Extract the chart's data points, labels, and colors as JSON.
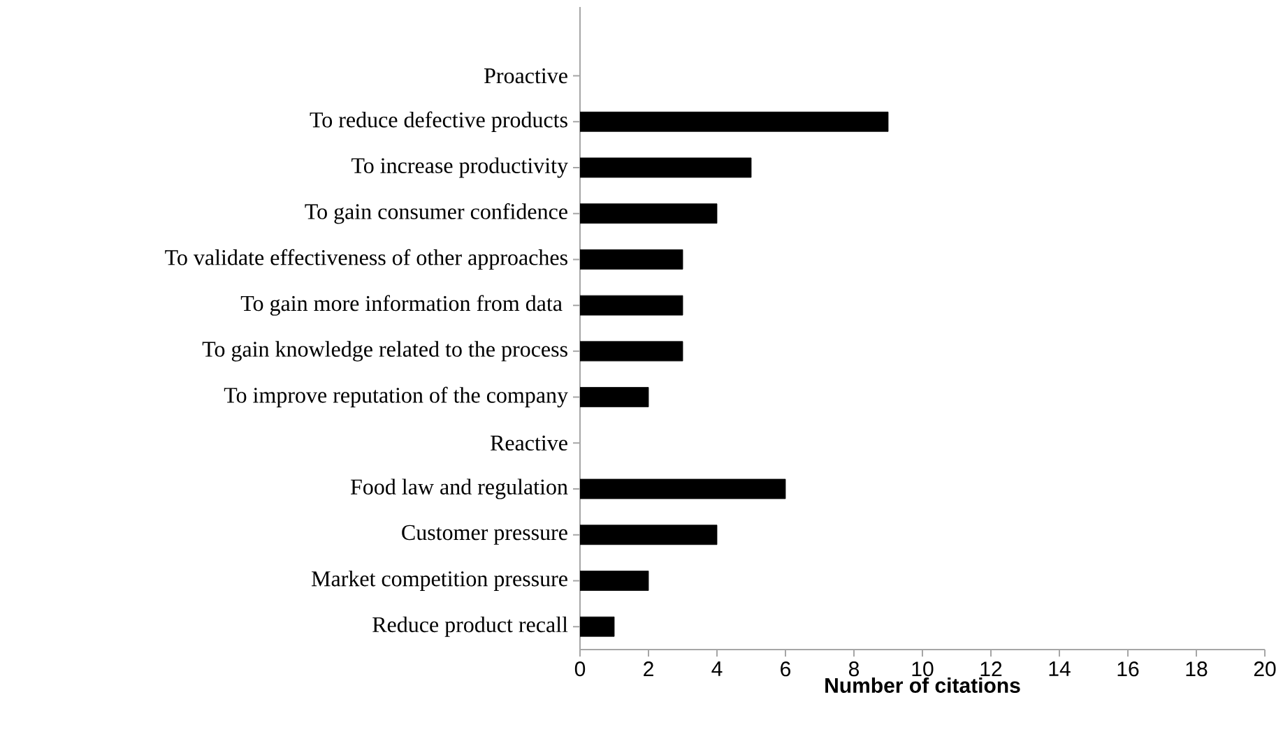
{
  "chart_data": {
    "type": "bar",
    "orientation": "horizontal",
    "xlabel": "Number of citations",
    "categories": [
      "Proactive",
      "To reduce defective products",
      "To increase productivity",
      "To gain consumer confidence",
      "To validate effectiveness of other approaches",
      "To gain more information from data ",
      "To gain knowledge related to the process",
      "To improve reputation of the company",
      "Reactive",
      "Food law and regulation",
      "Customer pressure",
      "Market competition pressure",
      "Reduce product recall"
    ],
    "values": [
      null,
      9,
      5,
      4,
      3,
      3,
      3,
      2,
      null,
      6,
      4,
      2,
      1
    ],
    "color": "#000000",
    "xlim": [
      0,
      20
    ],
    "xticks": [
      0,
      2,
      4,
      6,
      8,
      10,
      12,
      14,
      16,
      18,
      20
    ]
  }
}
